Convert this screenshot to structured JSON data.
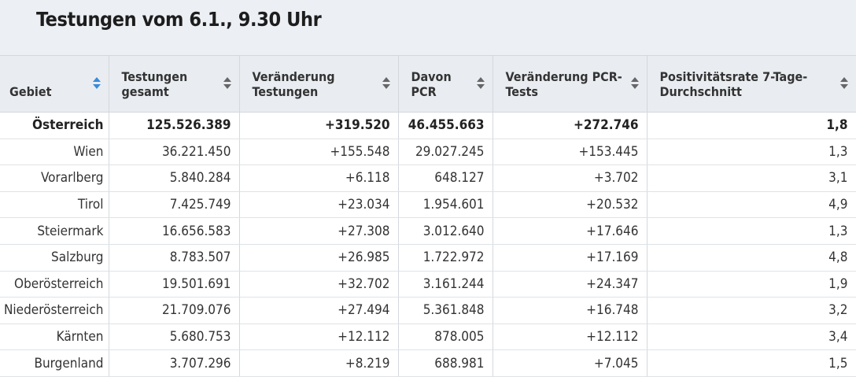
{
  "title": "Testungen vom 6.1., 9.30 Uhr",
  "table": {
    "columns": [
      {
        "label": "Gebiet",
        "sort_active": true
      },
      {
        "label": "Testungen gesamt",
        "sort_active": false
      },
      {
        "label": "Veränderung Testungen",
        "sort_active": false
      },
      {
        "label": "Davon PCR",
        "sort_active": false
      },
      {
        "label": "Veränderung PCR-Tests",
        "sort_active": false
      },
      {
        "label": "Positivitätsrate 7-Tage-Durchschnitt",
        "sort_active": false
      }
    ],
    "rows": [
      [
        "Österreich",
        "125.526.389",
        "+319.520",
        "46.455.663",
        "+272.746",
        "1,8"
      ],
      [
        "Wien",
        "36.221.450",
        "+155.548",
        "29.027.245",
        "+153.445",
        "1,3"
      ],
      [
        "Vorarlberg",
        "5.840.284",
        "+6.118",
        "648.127",
        "+3.702",
        "3,1"
      ],
      [
        "Tirol",
        "7.425.749",
        "+23.034",
        "1.954.601",
        "+20.532",
        "4,9"
      ],
      [
        "Steiermark",
        "16.656.583",
        "+27.308",
        "3.012.640",
        "+17.646",
        "1,3"
      ],
      [
        "Salzburg",
        "8.783.507",
        "+26.985",
        "1.722.972",
        "+17.169",
        "4,8"
      ],
      [
        "Oberösterreich",
        "19.501.691",
        "+32.702",
        "3.161.244",
        "+24.347",
        "1,9"
      ],
      [
        "Niederösterreich",
        "21.709.076",
        "+27.494",
        "5.361.848",
        "+16.748",
        "3,2"
      ],
      [
        "Kärnten",
        "5.680.753",
        "+12.112",
        "878.005",
        "+12.112",
        "3,4"
      ],
      [
        "Burgenland",
        "3.707.296",
        "+8.219",
        "688.981",
        "+7.045",
        "1,5"
      ]
    ]
  },
  "colors": {
    "header_bg": "#e9edf1",
    "sort_active": "#3b8ad9"
  }
}
